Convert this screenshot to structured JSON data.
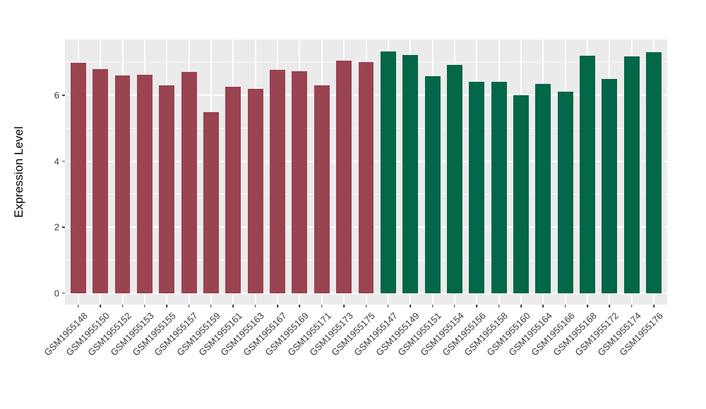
{
  "figure": {
    "background_color": "#FFFFFF",
    "panel_background_color": "#EBEBEB",
    "gridline_color": "#FFFFFF",
    "tick_mark_color": "#333333",
    "axis_text_color": "#383838"
  },
  "chart_data": {
    "type": "bar",
    "title": "",
    "xlabel": "",
    "ylabel": "Expression Level",
    "ylim": [
      0,
      7.7
    ],
    "yticks": [
      0,
      2,
      4,
      6
    ],
    "ytick_labels": [
      "0",
      "2",
      "4",
      "6"
    ],
    "yminor_gridlines": [
      1,
      3,
      5,
      7
    ],
    "grid": "white major and minor gridlines on gray panel, vertical major gridlines at each bar center",
    "legend_position": "none",
    "x_label_rotation_deg": 45,
    "colors": {
      "group1": "#9A4351",
      "group2": "#016748"
    },
    "bars": [
      {
        "label": "GSM1955148",
        "value": 6.98,
        "group": "group1"
      },
      {
        "label": "GSM1955150",
        "value": 6.79,
        "group": "group1"
      },
      {
        "label": "GSM1955152",
        "value": 6.6,
        "group": "group1"
      },
      {
        "label": "GSM1955153",
        "value": 6.63,
        "group": "group1"
      },
      {
        "label": "GSM1955155",
        "value": 6.3,
        "group": "group1"
      },
      {
        "label": "GSM1955157",
        "value": 6.72,
        "group": "group1"
      },
      {
        "label": "GSM1955159",
        "value": 5.49,
        "group": "group1"
      },
      {
        "label": "GSM1955161",
        "value": 6.27,
        "group": "group1"
      },
      {
        "label": "GSM1955163",
        "value": 6.2,
        "group": "group1"
      },
      {
        "label": "GSM1955167",
        "value": 6.77,
        "group": "group1"
      },
      {
        "label": "GSM1955169",
        "value": 6.74,
        "group": "group1"
      },
      {
        "label": "GSM1955171",
        "value": 6.31,
        "group": "group1"
      },
      {
        "label": "GSM1955173",
        "value": 7.06,
        "group": "group1"
      },
      {
        "label": "GSM1955175",
        "value": 7.02,
        "group": "group1"
      },
      {
        "label": "GSM1955147",
        "value": 7.32,
        "group": "group2"
      },
      {
        "label": "GSM1955149",
        "value": 7.23,
        "group": "group2"
      },
      {
        "label": "GSM1955151",
        "value": 6.58,
        "group": "group2"
      },
      {
        "label": "GSM1955154",
        "value": 6.92,
        "group": "group2"
      },
      {
        "label": "GSM1955156",
        "value": 6.41,
        "group": "group2"
      },
      {
        "label": "GSM1955158",
        "value": 6.41,
        "group": "group2"
      },
      {
        "label": "GSM1955160",
        "value": 6.0,
        "group": "group2"
      },
      {
        "label": "GSM1955164",
        "value": 6.34,
        "group": "group2"
      },
      {
        "label": "GSM1955166",
        "value": 6.12,
        "group": "group2"
      },
      {
        "label": "GSM1955168",
        "value": 7.21,
        "group": "group2"
      },
      {
        "label": "GSM1955172",
        "value": 6.49,
        "group": "group2"
      },
      {
        "label": "GSM1955174",
        "value": 7.18,
        "group": "group2"
      },
      {
        "label": "GSM1955176",
        "value": 7.31,
        "group": "group2"
      }
    ]
  }
}
